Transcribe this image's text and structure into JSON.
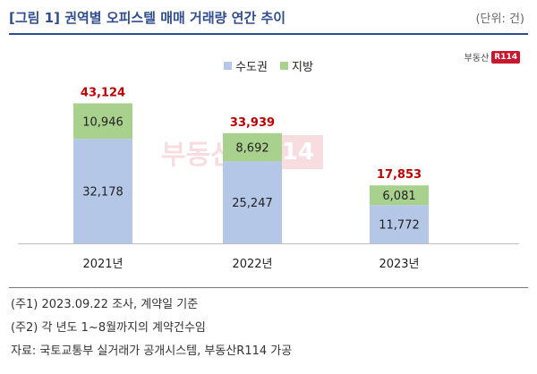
{
  "header": {
    "title": "[그림 1] 권역별 오피스텔 매매 거래량 연간 추이",
    "unit": "(단위: 건)"
  },
  "logo": {
    "text": "부동산",
    "badge": "R114"
  },
  "chart_data": {
    "type": "bar",
    "stacked": true,
    "categories": [
      "2021년",
      "2022년",
      "2023년"
    ],
    "series": [
      {
        "name": "수도권",
        "values": [
          32178,
          25247,
          11772
        ],
        "color": "#b4c7e7"
      },
      {
        "name": "지방",
        "values": [
          10946,
          8692,
          6081
        ],
        "color": "#a9d18e"
      }
    ],
    "totals": [
      43124,
      33939,
      17853
    ],
    "value_labels": {
      "수도권": [
        "32,178",
        "25,247",
        "11,772"
      ],
      "지방": [
        "10,946",
        "8,692",
        "6,081"
      ],
      "totals": [
        "43,124",
        "33,939",
        "17,853"
      ]
    },
    "total_color": "#c00000",
    "legend_position": "top-center",
    "title": "",
    "xlabel": "",
    "ylabel": "",
    "grid": false
  },
  "notes": [
    "(주1) 2023.09.22 조사, 계약일 기준",
    "(주2) 각 년도 1~8월까지의 계약건수임",
    "자료: 국토교통부 실거래가 공개시스템, 부동산R114 가공"
  ]
}
